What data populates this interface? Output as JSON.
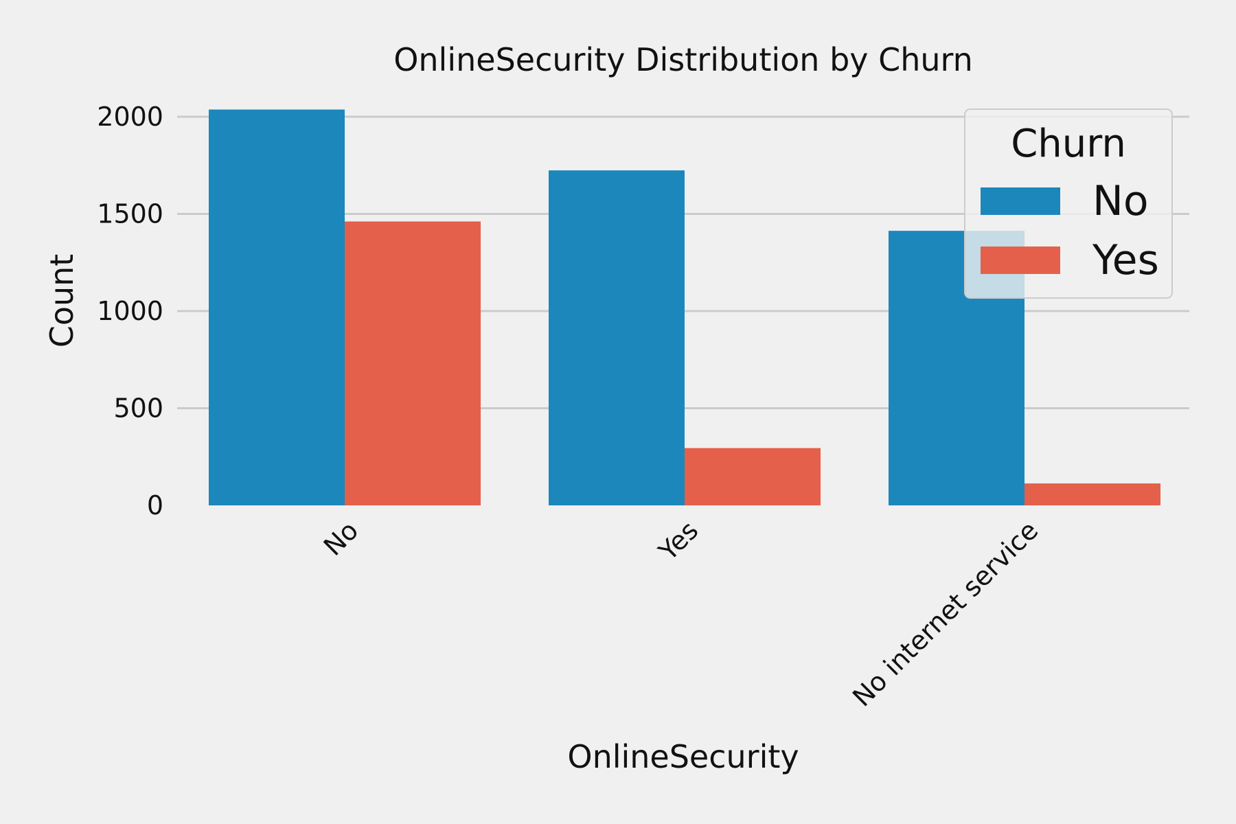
{
  "chart_data": {
    "type": "bar",
    "title": "OnlineSecurity Distribution by Churn",
    "xlabel": "OnlineSecurity",
    "ylabel": "Count",
    "categories": [
      "No",
      "Yes",
      "No internet service"
    ],
    "series": [
      {
        "name": "No",
        "values": [
          2037,
          1724,
          1413
        ],
        "color": "#1c87bb"
      },
      {
        "name": "Yes",
        "values": [
          1461,
          295,
          113
        ],
        "color": "#e5604a"
      }
    ],
    "ylim": [
      0,
      2000
    ],
    "yticks": [
      0,
      500,
      1000,
      1500,
      2000
    ],
    "y_tick_labels": [
      "0",
      "500",
      "1000",
      "1500",
      "2000"
    ],
    "grid": "horizontal",
    "legend": {
      "title": "Churn",
      "placement": "top-right"
    },
    "background": "#f0f0f0"
  }
}
